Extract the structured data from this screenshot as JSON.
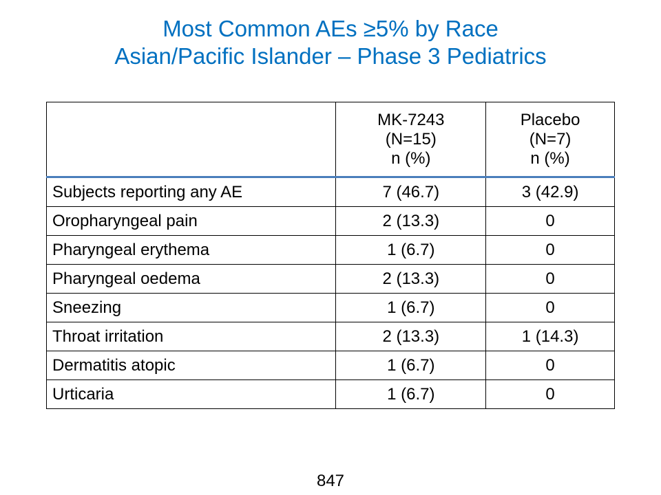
{
  "title": {
    "line1": "Most Common AEs ≥5% by Race",
    "line2": "Asian/Pacific Islander  – Phase 3 Pediatrics"
  },
  "table": {
    "header": {
      "label": "",
      "drug": {
        "line1": "MK-7243",
        "line2": "(N=15)",
        "line3": "n (%)"
      },
      "placebo": {
        "line1": "Placebo",
        "line2": "(N=7)",
        "line3": "n (%)"
      }
    },
    "rows": [
      {
        "label": "Subjects reporting any AE",
        "drug": "7 (46.7)",
        "placebo": "3 (42.9)"
      },
      {
        "label": "Oropharyngeal  pain",
        "drug": "2 (13.3)",
        "placebo": "0"
      },
      {
        "label": "Pharyngeal  erythema",
        "drug": "1 (6.7)",
        "placebo": "0"
      },
      {
        "label": "Pharyngeal  oedema",
        "drug": "2 (13.3)",
        "placebo": "0"
      },
      {
        "label": "Sneezing",
        "drug": "1 (6.7)",
        "placebo": "0"
      },
      {
        "label": "Throat irritation",
        "drug": "2 (13.3)",
        "placebo": "1 (14.3)"
      },
      {
        "label": "Dermatitis atopic",
        "drug": "1 (6.7)",
        "placebo": "0"
      },
      {
        "label": "Urticaria",
        "drug": "1 (6.7)",
        "placebo": "0"
      }
    ]
  },
  "page_number": "847",
  "colors": {
    "title": "#0070C0",
    "header_rule": "#4A7EBB"
  }
}
